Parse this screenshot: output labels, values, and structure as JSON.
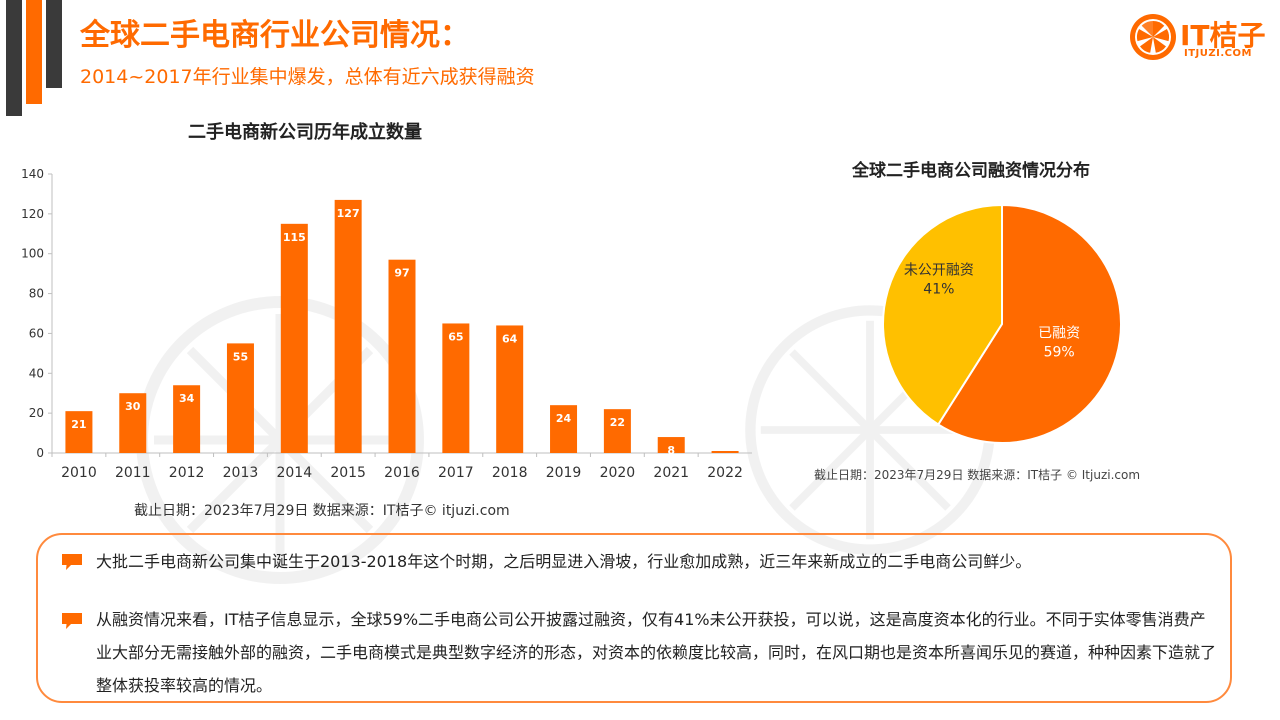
{
  "header": {
    "title": "全球二手电商行业公司情况：",
    "subtitle": "2014~2017年行业集中爆发，总体有近六成获得融资"
  },
  "logo": {
    "name": "IT桔子",
    "domain": "ITJUZI.COM"
  },
  "colors": {
    "accent": "#ff6a00",
    "secondary": "#ffc000",
    "dark": "#3a3a3a"
  },
  "chart_data": [
    {
      "type": "bar",
      "title": "二手电商新公司历年成立数量",
      "categories": [
        "2010",
        "2011",
        "2012",
        "2013",
        "2014",
        "2015",
        "2016",
        "2017",
        "2018",
        "2019",
        "2020",
        "2021",
        "2022"
      ],
      "values": [
        21,
        30,
        34,
        55,
        115,
        127,
        97,
        65,
        64,
        24,
        22,
        8,
        1
      ],
      "data_labels": [
        "21",
        "30",
        "34",
        "55",
        "115",
        "127",
        "97",
        "65",
        "64",
        "24",
        "22",
        "8",
        ""
      ],
      "ylim": [
        0,
        140
      ],
      "yticks": [
        0,
        20,
        40,
        60,
        80,
        100,
        120,
        140
      ],
      "color": "#ff6a00",
      "source": "截止日期：2023年7月29日    数据来源：IT桔子© itjuzi.com"
    },
    {
      "type": "pie",
      "title": "全球二手电商公司融资情况分布",
      "slices": [
        {
          "label": "已融资",
          "value": 59,
          "value_label": "59%",
          "color": "#ff6a00"
        },
        {
          "label": "未公开融资",
          "value": 41,
          "value_label": "41%",
          "color": "#ffc000"
        }
      ],
      "source": "截止日期：2023年7月29日    数据来源：IT桔子 © Itjuzi.com"
    }
  ],
  "notes": [
    "大批二手电商新公司集中诞生于2013-2018年这个时期，之后明显进入滑坡，行业愈加成熟，近三年来新成立的二手电商公司鲜少。",
    "从融资情况来看，IT桔子信息显示，全球59%二手电商公司公开披露过融资，仅有41%未公开获投，可以说，这是高度资本化的行业。不同于实体零售消费产业大部分无需接触外部的融资，二手电商模式是典型数字经济的形态，对资本的依赖度比较高，同时，在风口期也是资本所喜闻乐见的赛道，种种因素下造就了整体获投率较高的情况。"
  ]
}
